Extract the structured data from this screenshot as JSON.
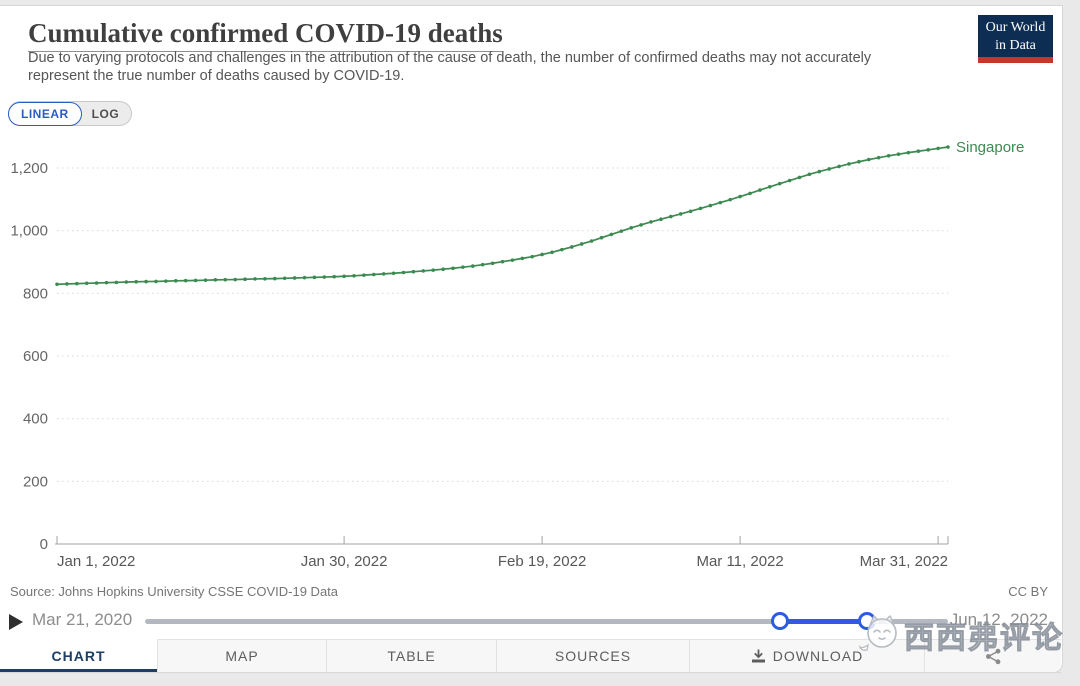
{
  "header": {
    "title": "Cumulative confirmed COVID-19 deaths",
    "subtitle": "Due to varying protocols and challenges in the attribution of the cause of death, the number of confirmed deaths may not accurately represent the true number of deaths caused by COVID-19.",
    "scale_toggle": {
      "linear_label": "LINEAR",
      "log_label": "LOG",
      "selected": "LINEAR"
    },
    "logo": {
      "line1": "Our World",
      "line2": "in Data",
      "bg": "#0d2e52",
      "accent": "#c4372c"
    }
  },
  "chart_data": {
    "type": "line",
    "title": "Cumulative confirmed COVID-19 deaths",
    "xlabel": "",
    "ylabel": "",
    "grid": "dashed-horizontal",
    "legend_position": "end-of-line-label",
    "x_axis": {
      "range_days": [
        0,
        90
      ],
      "ticks": [
        {
          "day": 0,
          "label": "Jan 1, 2022"
        },
        {
          "day": 29,
          "label": "Jan 30, 2022"
        },
        {
          "day": 49,
          "label": "Feb 19, 2022"
        },
        {
          "day": 69,
          "label": "Mar 11, 2022"
        },
        {
          "day": 89,
          "label": "Mar 31, 2022"
        }
      ]
    },
    "y_axis": {
      "range": [
        0,
        1290
      ],
      "ticks": [
        {
          "value": 0,
          "label": "0"
        },
        {
          "value": 200,
          "label": "200"
        },
        {
          "value": 400,
          "label": "400"
        },
        {
          "value": 600,
          "label": "600"
        },
        {
          "value": 800,
          "label": "800"
        },
        {
          "value": 1000,
          "label": "1,000"
        },
        {
          "value": 1200,
          "label": "1,200"
        }
      ]
    },
    "series": [
      {
        "name": "Singapore",
        "color": "#3c8a51",
        "points": [
          [
            0,
            829
          ],
          [
            2,
            831
          ],
          [
            4,
            833
          ],
          [
            6,
            835
          ],
          [
            8,
            837
          ],
          [
            10,
            838
          ],
          [
            12,
            840
          ],
          [
            14,
            841
          ],
          [
            16,
            843
          ],
          [
            18,
            844
          ],
          [
            20,
            846
          ],
          [
            22,
            847
          ],
          [
            24,
            849
          ],
          [
            26,
            851
          ],
          [
            28,
            853
          ],
          [
            30,
            856
          ],
          [
            32,
            860
          ],
          [
            34,
            864
          ],
          [
            36,
            869
          ],
          [
            38,
            874
          ],
          [
            40,
            880
          ],
          [
            42,
            887
          ],
          [
            44,
            896
          ],
          [
            46,
            906
          ],
          [
            48,
            917
          ],
          [
            50,
            931
          ],
          [
            52,
            948
          ],
          [
            54,
            967
          ],
          [
            56,
            988
          ],
          [
            58,
            1009
          ],
          [
            60,
            1028
          ],
          [
            62,
            1045
          ],
          [
            64,
            1062
          ],
          [
            66,
            1080
          ],
          [
            68,
            1099
          ],
          [
            70,
            1119
          ],
          [
            72,
            1140
          ],
          [
            74,
            1160
          ],
          [
            76,
            1180
          ],
          [
            78,
            1197
          ],
          [
            80,
            1213
          ],
          [
            82,
            1227
          ],
          [
            84,
            1239
          ],
          [
            86,
            1249
          ],
          [
            88,
            1258
          ],
          [
            90,
            1267
          ]
        ]
      }
    ]
  },
  "footer": {
    "source": "Source: Johns Hopkins University CSSE COVID-19 Data",
    "license": "CC BY",
    "timeline": {
      "start_label": "Mar 21, 2020",
      "end_label": "Jun 12, 2022",
      "selection_start_pct": 79.1,
      "selection_end_pct": 89.9
    }
  },
  "tabs": [
    {
      "label": "CHART",
      "active": true
    },
    {
      "label": "MAP",
      "active": false
    },
    {
      "label": "TABLE",
      "active": false
    },
    {
      "label": "SOURCES",
      "active": false
    },
    {
      "label": "DOWNLOAD",
      "active": false,
      "icon": "download-icon"
    },
    {
      "label": "",
      "active": false,
      "icon": "share-icon"
    }
  ],
  "watermark": {
    "text": "西西弗评论"
  },
  "colors": {
    "accent_navy": "#1d3d63",
    "control_blue": "#2e5be4",
    "series_green": "#3c8a51",
    "grid_gray": "#d8d8d8"
  }
}
